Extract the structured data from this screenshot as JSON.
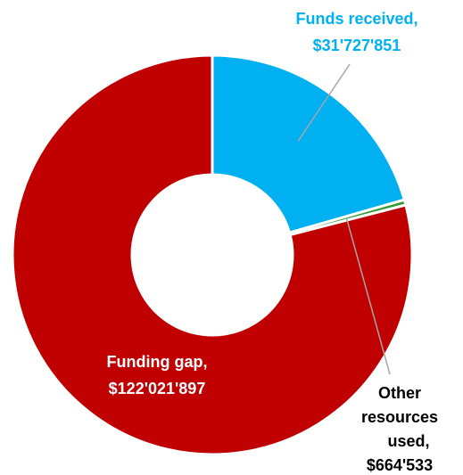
{
  "chart_data": {
    "type": "pie",
    "donut": true,
    "title": "",
    "legend": "none",
    "categories": [
      "Funds received",
      "Other resources used",
      "Funding gap"
    ],
    "values": [
      31727851,
      664533,
      122021897
    ],
    "value_labels": [
      "$31'727'851",
      "$664'533",
      "$122'021'897"
    ],
    "colors": [
      "#00b0f0",
      "#339933",
      "#c00000"
    ],
    "labels": {
      "funds_received": {
        "name": "Funds received,",
        "value": "$31'727'851",
        "color": "#00b0f0"
      },
      "other_resources": {
        "name_line1": "Other",
        "name_line2": "resources",
        "name_line3": "used,",
        "value": "$664'533",
        "color": "#000000"
      },
      "funding_gap": {
        "name": "Funding gap,",
        "value": "$122'021'897",
        "color": "#ffffff"
      }
    }
  }
}
